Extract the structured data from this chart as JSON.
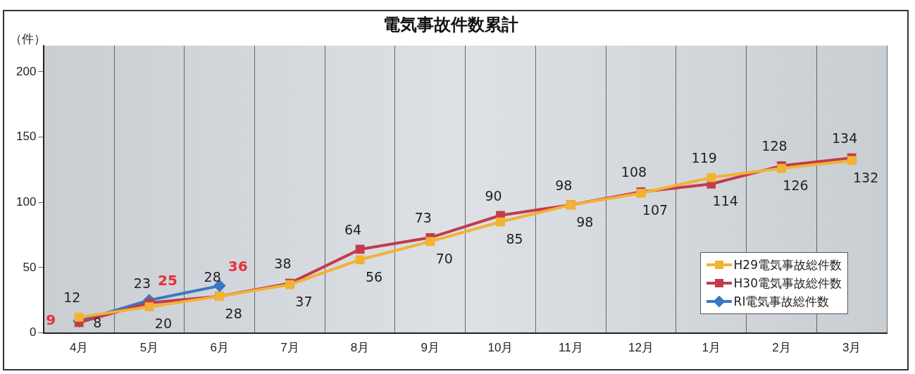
{
  "chart_data": {
    "type": "line",
    "title": "電気事故件数累計",
    "ylabel": "（件）",
    "categories": [
      "4月",
      "5月",
      "6月",
      "7月",
      "8月",
      "9月",
      "10月",
      "11月",
      "12月",
      "1月",
      "2月",
      "3月"
    ],
    "series": [
      {
        "name": "H29電気事故総件数",
        "color": "#f2b233",
        "marker": "square",
        "values": [
          12,
          20,
          28,
          37,
          56,
          70,
          85,
          98,
          107,
          119,
          126,
          132
        ]
      },
      {
        "name": "H30電気事故総件数",
        "color": "#c23b4e",
        "marker": "square",
        "values": [
          8,
          23,
          28,
          38,
          64,
          73,
          90,
          98,
          108,
          114,
          128,
          134
        ]
      },
      {
        "name": "RI電気事故総件数",
        "color": "#3a78c4",
        "marker": "diamond",
        "values": [
          9,
          25,
          36,
          null,
          null,
          null,
          null,
          null,
          null,
          null,
          null,
          null
        ]
      }
    ],
    "ylim": [
      0,
      220
    ],
    "yticks": [
      0,
      50,
      100,
      150,
      200
    ],
    "grid": "x",
    "legend": "bottom right",
    "data_labels": true
  }
}
